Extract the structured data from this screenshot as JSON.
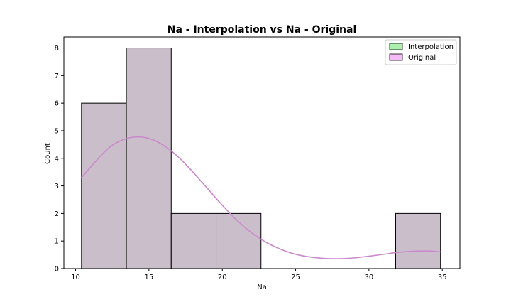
{
  "chart_data": {
    "type": "bar",
    "title": "Na - Interpolation vs Na - Original",
    "xlabel": "Na",
    "ylabel": "Count",
    "xlim": [
      9.2,
      36.2
    ],
    "ylim": [
      0,
      8.4
    ],
    "xticks": [
      10,
      15,
      20,
      25,
      30,
      35
    ],
    "yticks": [
      0,
      1,
      2,
      3,
      4,
      5,
      6,
      7,
      8
    ],
    "grid": false,
    "legend_position": "top-right",
    "bins": [
      {
        "x0": 10.4,
        "x1": 13.46,
        "count": 6
      },
      {
        "x0": 13.46,
        "x1": 16.52,
        "count": 8
      },
      {
        "x0": 16.52,
        "x1": 19.58,
        "count": 2
      },
      {
        "x0": 19.58,
        "x1": 22.64,
        "count": 2
      },
      {
        "x0": 22.64,
        "x1": 25.7,
        "count": 0
      },
      {
        "x0": 25.7,
        "x1": 28.76,
        "count": 0
      },
      {
        "x0": 28.76,
        "x1": 31.82,
        "count": 0
      },
      {
        "x0": 31.82,
        "x1": 34.88,
        "count": 2
      }
    ],
    "series": [
      {
        "name": "Interpolation",
        "color": "#90ee90",
        "counts": [
          6,
          8,
          2,
          2,
          0,
          0,
          0,
          2
        ]
      },
      {
        "name": "Original",
        "color": "#ee82ee",
        "counts": [
          6,
          8,
          2,
          2,
          0,
          0,
          0,
          2
        ]
      }
    ],
    "overlap_fill_color": "#c9bec9",
    "kde": {
      "color": "#cc88cc",
      "x": [
        10.4,
        12.0,
        13.0,
        14.0,
        15.0,
        16.0,
        17.0,
        18.0,
        19.0,
        20.0,
        21.0,
        22.0,
        23.0,
        24.0,
        25.0,
        26.0,
        27.0,
        28.0,
        29.0,
        30.0,
        31.0,
        32.0,
        33.0,
        34.0,
        34.88
      ],
      "y": [
        3.3,
        4.25,
        4.62,
        4.77,
        4.72,
        4.47,
        4.05,
        3.5,
        2.9,
        2.3,
        1.75,
        1.3,
        0.95,
        0.7,
        0.52,
        0.42,
        0.37,
        0.36,
        0.39,
        0.45,
        0.52,
        0.59,
        0.63,
        0.64,
        0.61
      ]
    }
  }
}
